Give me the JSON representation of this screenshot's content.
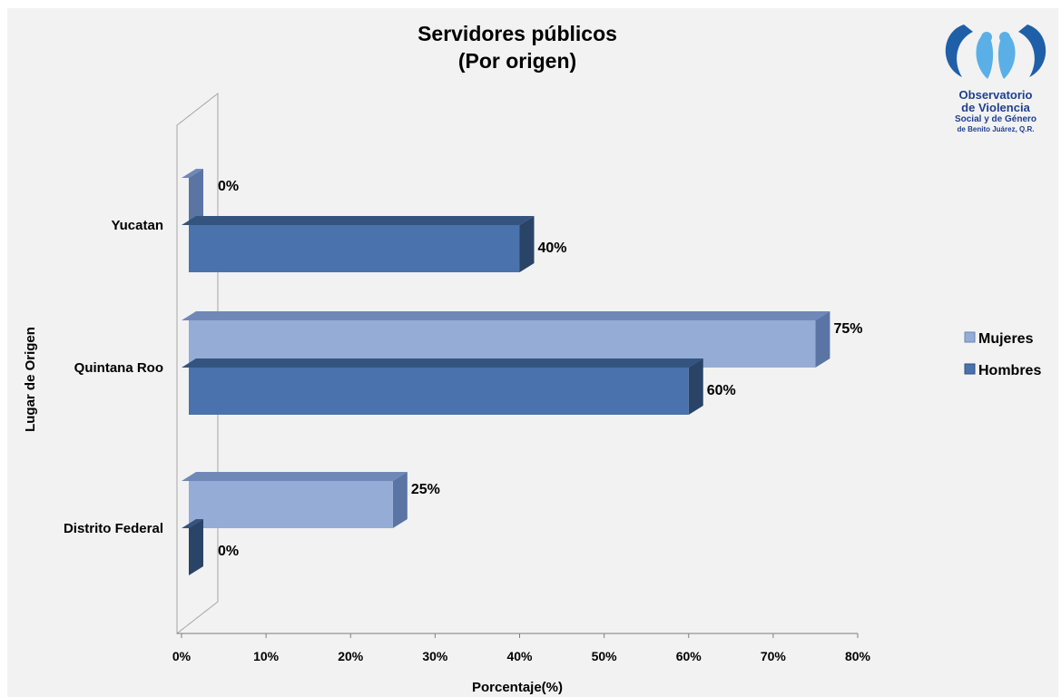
{
  "chart_data": {
    "type": "bar",
    "orientation": "horizontal",
    "title": "Servidores públicos",
    "subtitle": "(Por origen)",
    "xlabel": "Porcentaje(%)",
    "ylabel": "Lugar de Origen",
    "categories": [
      "Yucatan",
      "Quintana Roo",
      "Distrito Federal"
    ],
    "series": [
      {
        "name": "Mujeres",
        "values": [
          0,
          75,
          25
        ],
        "labels": [
          "0%",
          "75%",
          "25%"
        ],
        "color": "#94acd6"
      },
      {
        "name": "Hombres",
        "values": [
          40,
          60,
          0
        ],
        "labels": [
          "40%",
          "60%",
          "0%"
        ],
        "color": "#4a72ac"
      }
    ],
    "xlim": [
      0,
      80
    ],
    "xticks": [
      "0%",
      "10%",
      "20%",
      "30%",
      "40%",
      "50%",
      "60%",
      "70%",
      "80%"
    ],
    "legend_position": "right",
    "grid": false
  },
  "logo": {
    "line1": "Observatorio",
    "line2": "de Violencia",
    "line3": "Social y de Género",
    "line4": "de Benito Juárez, Q.R."
  }
}
